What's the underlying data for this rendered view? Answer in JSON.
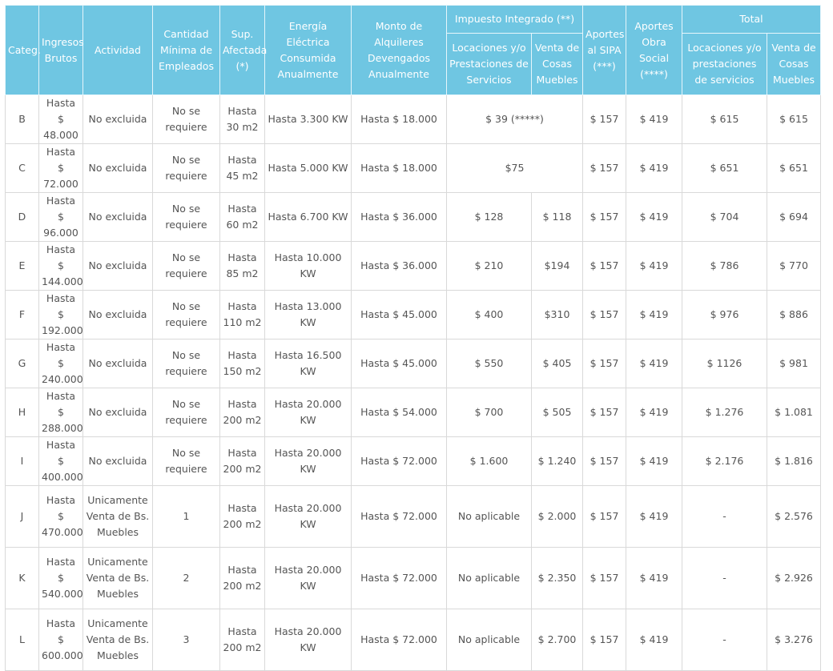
{
  "headers": {
    "categ": "Categ.",
    "ingresos": "Ingresos Brutos",
    "actividad": "Actividad",
    "empleados": "Cantidad Mínima de Empleados",
    "superficie": "Sup. Afectada (*)",
    "energia": "Energía Eléctrica Consumida Anualmente",
    "alquileres": "Monto de Alquileres Devengados Anualmente",
    "impuesto": "Impuesto Integrado (**)",
    "imp_locaciones": "Locaciones y/o Prestaciones de Servicios",
    "imp_venta": "Venta de Cosas Muebles",
    "sipa": "Aportes al SIPA (***)",
    "obra_social": "Aportes Obra Social (****)",
    "total": "Total",
    "tot_locaciones": "Locaciones y/o prestaciones de servicios",
    "tot_venta": "Venta de Cosas Muebles"
  },
  "rows": [
    {
      "cat": "B",
      "ingresos": "Hasta $ 48.000",
      "actividad": "No excluida",
      "empleados": "No se requiere",
      "sup": "Hasta 30 m2",
      "energia": "Hasta 3.300 KW",
      "alquileres": "Hasta $ 18.000",
      "imp_merged": "$ 39 (*****)",
      "sipa": "$ 157",
      "obra": "$ 419",
      "tot_loc": "$ 615",
      "tot_venta": "$ 615"
    },
    {
      "cat": "C",
      "ingresos": "Hasta $ 72.000",
      "actividad": "No excluida",
      "empleados": "No se requiere",
      "sup": "Hasta 45 m2",
      "energia": "Hasta 5.000 KW",
      "alquileres": "Hasta $ 18.000",
      "imp_merged": "$75",
      "sipa": "$ 157",
      "obra": "$ 419",
      "tot_loc": "$ 651",
      "tot_venta": "$ 651"
    },
    {
      "cat": "D",
      "ingresos": "Hasta $ 96.000",
      "actividad": "No excluida",
      "empleados": "No se requiere",
      "sup": "Hasta 60 m2",
      "energia": "Hasta 6.700 KW",
      "alquileres": "Hasta $ 36.000",
      "imp_loc": "$ 128",
      "imp_venta": "$ 118",
      "sipa": "$ 157",
      "obra": "$ 419",
      "tot_loc": "$ 704",
      "tot_venta": "$ 694"
    },
    {
      "cat": "E",
      "ingresos": "Hasta $ 144.000",
      "actividad": "No excluida",
      "empleados": "No se requiere",
      "sup": "Hasta 85 m2",
      "energia": "Hasta 10.000 KW",
      "alquileres": "Hasta $ 36.000",
      "imp_loc": "$ 210",
      "imp_venta": "$194",
      "sipa": "$ 157",
      "obra": "$ 419",
      "tot_loc": "$ 786",
      "tot_venta": "$ 770"
    },
    {
      "cat": "F",
      "ingresos": "Hasta $ 192.000",
      "actividad": "No excluida",
      "empleados": "No se requiere",
      "sup": "Hasta 110 m2",
      "energia": "Hasta 13.000 KW",
      "alquileres": "Hasta $ 45.000",
      "imp_loc": "$ 400",
      "imp_venta": "$310",
      "sipa": "$ 157",
      "obra": "$ 419",
      "tot_loc": "$ 976",
      "tot_venta": "$ 886"
    },
    {
      "cat": "G",
      "ingresos": "Hasta $ 240.000",
      "actividad": "No excluida",
      "empleados": "No se requiere",
      "sup": "Hasta 150 m2",
      "energia": "Hasta 16.500 KW",
      "alquileres": "Hasta $ 45.000",
      "imp_loc": "$ 550",
      "imp_venta": "$ 405",
      "sipa": "$ 157",
      "obra": "$ 419",
      "tot_loc": "$ 1126",
      "tot_venta": "$ 981"
    },
    {
      "cat": "H",
      "ingresos": "Hasta $ 288.000",
      "actividad": "No excluida",
      "empleados": "No se requiere",
      "sup": "Hasta 200 m2",
      "energia": "Hasta 20.000 KW",
      "alquileres": "Hasta $ 54.000",
      "imp_loc": "$ 700",
      "imp_venta": "$ 505",
      "sipa": "$ 157",
      "obra": "$ 419",
      "tot_loc": "$ 1.276",
      "tot_venta": "$ 1.081"
    },
    {
      "cat": "I",
      "ingresos": "Hasta $ 400.000",
      "actividad": "No excluida",
      "empleados": "No se requiere",
      "sup": "Hasta 200 m2",
      "energia": "Hasta 20.000 KW",
      "alquileres": "Hasta $ 72.000",
      "imp_loc": "$ 1.600",
      "imp_venta": "$ 1.240",
      "sipa": "$ 157",
      "obra": "$ 419",
      "tot_loc": "$ 2.176",
      "tot_venta": "$ 1.816"
    },
    {
      "cat": "J",
      "ingresos": "Hasta $ 470.000",
      "actividad": "Unicamente Venta de Bs. Muebles",
      "empleados": "1",
      "sup": "Hasta 200 m2",
      "energia": "Hasta 20.000 KW",
      "alquileres": "Hasta $ 72.000",
      "imp_loc": "No aplicable",
      "imp_venta": "$ 2.000",
      "sipa": "$ 157",
      "obra": "$ 419",
      "tot_loc": "-",
      "tot_venta": "$ 2.576"
    },
    {
      "cat": "K",
      "ingresos": "Hasta $ 540.000",
      "actividad": "Unicamente Venta de Bs. Muebles",
      "empleados": "2",
      "sup": "Hasta 200 m2",
      "energia": "Hasta 20.000 KW",
      "alquileres": "Hasta $ 72.000",
      "imp_loc": "No aplicable",
      "imp_venta": "$ 2.350",
      "sipa": "$ 157",
      "obra": "$ 419",
      "tot_loc": "-",
      "tot_venta": "$ 2.926"
    },
    {
      "cat": "L",
      "ingresos": "Hasta $ 600.000",
      "actividad": "Unicamente Venta de Bs. Muebles",
      "empleados": "3",
      "sup": "Hasta 200 m2",
      "energia": "Hasta 20.000 KW",
      "alquileres": "Hasta $ 72.000",
      "imp_loc": "No aplicable",
      "imp_venta": "$ 2.700",
      "sipa": "$ 157",
      "obra": "$ 419",
      "tot_loc": "-",
      "tot_venta": "$ 3.276"
    }
  ]
}
